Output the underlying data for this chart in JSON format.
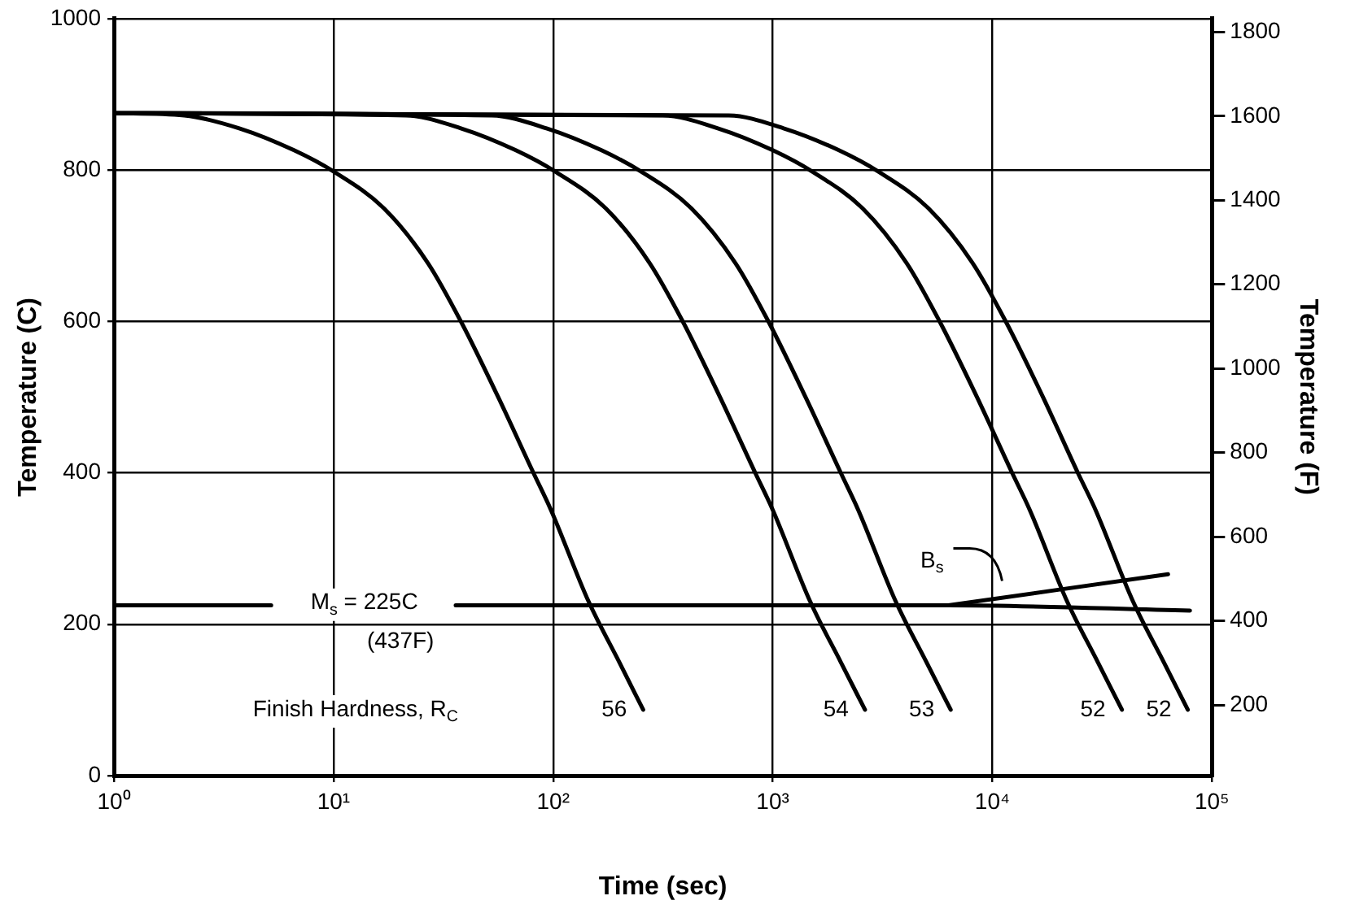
{
  "chart_data": {
    "type": "line",
    "xlabel": "Time (sec)",
    "ylabel": "Temperature (C)",
    "y2label": "Temperature (F)",
    "log": "x",
    "xlim": [
      1,
      100000
    ],
    "xticks": [
      {
        "value": 1,
        "label": "10⁰"
      },
      {
        "value": 10,
        "label": "10¹"
      },
      {
        "value": 100,
        "label": "10²"
      },
      {
        "value": 1000,
        "label": "10³"
      },
      {
        "value": 10000,
        "label": "10⁴"
      },
      {
        "value": 100000,
        "label": "10⁵"
      }
    ],
    "ylim": [
      0,
      1000
    ],
    "yticks": [
      0,
      200,
      400,
      600,
      800,
      1000
    ],
    "y2lim": [
      32,
      1832
    ],
    "y2ticks": [
      200,
      400,
      600,
      800,
      1000,
      1200,
      1400,
      1600,
      1800
    ],
    "grid": true,
    "legend": false,
    "marker": "none",
    "line_style": "solid",
    "series": [
      {
        "name": "56",
        "color": "#000000",
        "x": [
          1,
          2.09,
          3.72,
          6.61,
          10,
          17.0,
          26.9,
          38.0,
          56.2,
          81.3,
          97.7,
          145,
          200,
          257
        ],
        "values": [
          875,
          872,
          855,
          826,
          798,
          749,
          677,
          600,
          500,
          400,
          351,
          230,
          150,
          87
        ]
      },
      {
        "name": "54",
        "color": "#000000",
        "x": [
          1,
          21.4,
          38.0,
          67.6,
          102,
          174,
          275,
          389,
          575,
          832,
          1000,
          1480,
          2040,
          2630
        ],
        "values": [
          875,
          872,
          855,
          826,
          798,
          749,
          677,
          600,
          500,
          400,
          351,
          230,
          150,
          87
        ]
      },
      {
        "name": "53",
        "color": "#000000",
        "x": [
          1,
          52.5,
          93.3,
          166,
          251,
          427,
          676,
          955,
          1410,
          2040,
          2450,
          3630,
          5010,
          6460
        ],
        "values": [
          875,
          872,
          855,
          826,
          798,
          749,
          677,
          600,
          500,
          400,
          351,
          230,
          150,
          87
        ]
      },
      {
        "name": "52",
        "color": "#000000",
        "x": [
          1,
          316,
          562,
          1000,
          1510,
          2570,
          4070,
          5750,
          8510,
          12300,
          14800,
          21900,
          30200,
          38900
        ],
        "values": [
          875,
          872,
          855,
          826,
          798,
          749,
          677,
          600,
          500,
          400,
          351,
          230,
          150,
          87
        ]
      },
      {
        "name": "52",
        "color": "#000000",
        "x": [
          1,
          631,
          1120,
          2000,
          3020,
          5130,
          8130,
          11500,
          17000,
          24500,
          29500,
          43700,
          60300,
          77600
        ],
        "values": [
          875,
          872,
          855,
          826,
          798,
          749,
          677,
          600,
          500,
          400,
          351,
          230,
          150,
          87
        ]
      },
      {
        "color": "#000000",
        "x": [
          1,
          5.2,
          14,
          36,
          6310,
          79400
        ],
        "values": [
          225,
          225,
          null,
          225,
          225,
          218
        ]
      },
      {
        "color": "#000000",
        "x": [
          6310,
          63100
        ],
        "values": [
          225,
          266
        ]
      }
    ],
    "annotations": [
      "M$_{s}$ = 225C",
      "(437F)",
      "B$_{s}$",
      "Finish Hardness, R$_{C}$"
    ]
  }
}
